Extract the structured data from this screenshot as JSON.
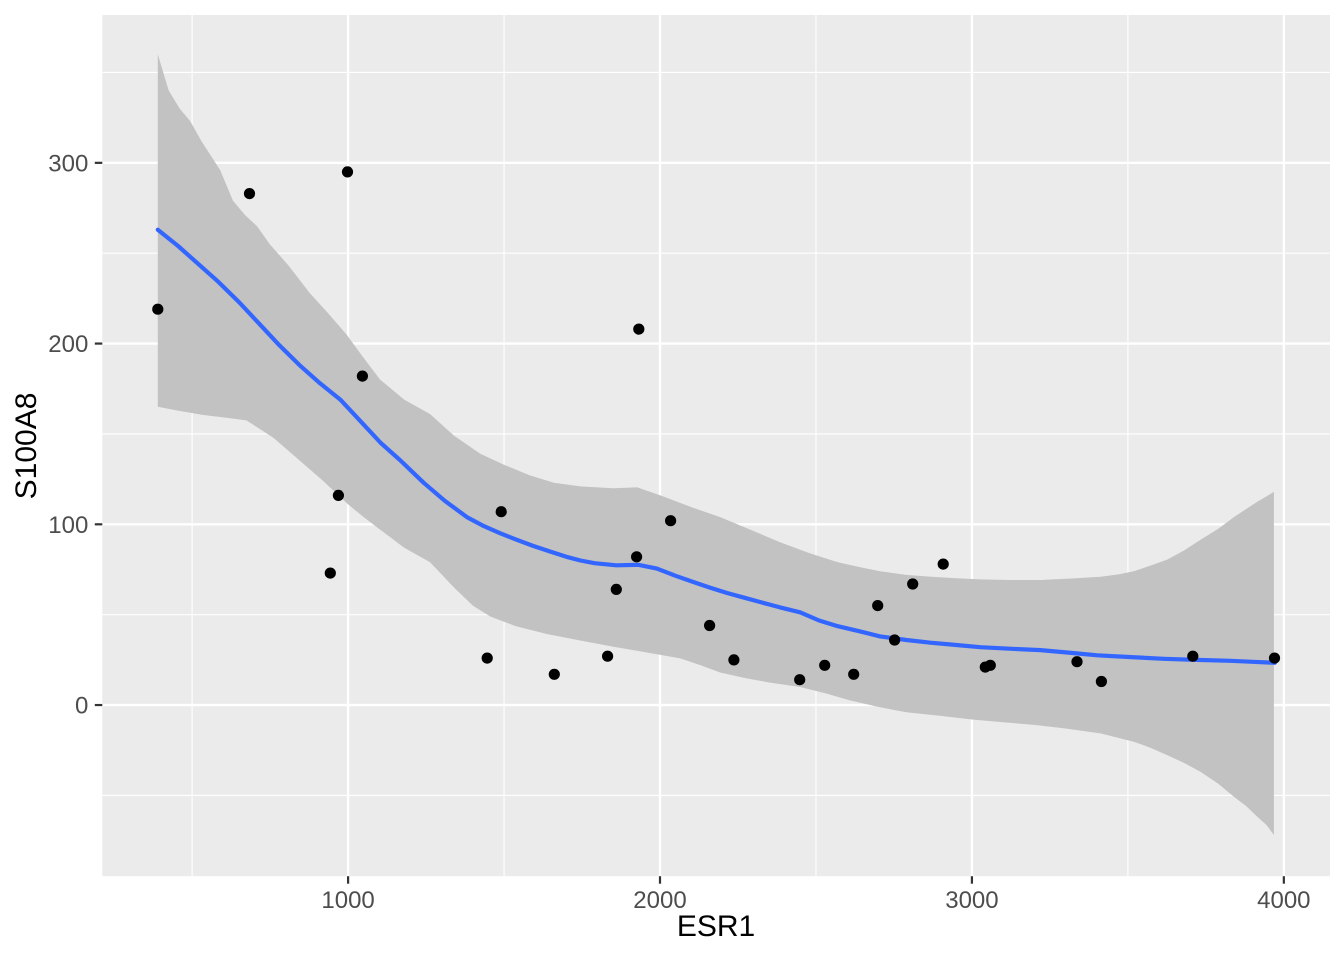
{
  "chart_data": {
    "type": "scatter",
    "title": "",
    "xlabel": "ESR1",
    "ylabel": "S100A8",
    "grid": "on",
    "legend_position": "none",
    "x_axis": {
      "range": [
        212,
        4148
      ],
      "ticks": [
        {
          "value": 1000,
          "label": "1000"
        },
        {
          "value": 2000,
          "label": "2000"
        },
        {
          "value": 3000,
          "label": "3000"
        },
        {
          "value": 4000,
          "label": "4000"
        }
      ],
      "minor_ticks": [
        500,
        1500,
        2500,
        3500
      ]
    },
    "y_axis": {
      "range": [
        -94.7,
        381.8
      ],
      "ticks": [
        {
          "value": 0,
          "label": "0"
        },
        {
          "value": 100,
          "label": "100"
        },
        {
          "value": 200,
          "label": "200"
        },
        {
          "value": 300,
          "label": "300"
        }
      ],
      "minor_ticks": [
        -50,
        50,
        150,
        250,
        350
      ]
    },
    "series": [
      {
        "name": "observations",
        "type": "points",
        "data": [
          [
            390,
            219
          ],
          [
            684,
            283
          ],
          [
            998,
            295
          ],
          [
            1046,
            182
          ],
          [
            969,
            116
          ],
          [
            943,
            73
          ],
          [
            1491,
            107
          ],
          [
            1446,
            26
          ],
          [
            1661,
            17
          ],
          [
            1832,
            27
          ],
          [
            1860,
            64
          ],
          [
            1925,
            82
          ],
          [
            1932,
            208
          ],
          [
            2034,
            102
          ],
          [
            2159,
            44
          ],
          [
            2237,
            25
          ],
          [
            2448,
            14
          ],
          [
            2528,
            22
          ],
          [
            2621,
            17
          ],
          [
            2698,
            55
          ],
          [
            2752,
            36
          ],
          [
            2810,
            67
          ],
          [
            2908,
            78
          ],
          [
            3043,
            21
          ],
          [
            3059,
            22
          ],
          [
            3337,
            24
          ],
          [
            3415,
            13
          ],
          [
            3708,
            27
          ],
          [
            3970,
            26
          ]
        ]
      },
      {
        "name": "loess-fit",
        "type": "line",
        "data": [
          [
            390,
            263
          ],
          [
            455,
            254
          ],
          [
            520,
            244
          ],
          [
            585,
            234
          ],
          [
            650,
            223
          ],
          [
            715,
            211
          ],
          [
            780,
            199
          ],
          [
            845,
            188
          ],
          [
            910,
            178
          ],
          [
            975,
            169
          ],
          [
            1040,
            157
          ],
          [
            1105,
            145
          ],
          [
            1170,
            135
          ],
          [
            1242,
            123
          ],
          [
            1310,
            113
          ],
          [
            1381,
            104
          ],
          [
            1435,
            99
          ],
          [
            1488,
            95
          ],
          [
            1540,
            91.5
          ],
          [
            1594,
            88
          ],
          [
            1650,
            84.8
          ],
          [
            1700,
            82
          ],
          [
            1745,
            80
          ],
          [
            1790,
            78.5
          ],
          [
            1860,
            77.3
          ],
          [
            1930,
            77.6
          ],
          [
            1990,
            75.5
          ],
          [
            2050,
            71.5
          ],
          [
            2108,
            68
          ],
          [
            2160,
            65
          ],
          [
            2215,
            62
          ],
          [
            2270,
            59.4
          ],
          [
            2321,
            57
          ],
          [
            2385,
            54
          ],
          [
            2449,
            51.3
          ],
          [
            2510,
            46.8
          ],
          [
            2570,
            43.6
          ],
          [
            2640,
            40.8
          ],
          [
            2706,
            38
          ],
          [
            2790,
            36
          ],
          [
            2867,
            34.5
          ],
          [
            2950,
            33.2
          ],
          [
            3027,
            32
          ],
          [
            3120,
            31.2
          ],
          [
            3220,
            30.4
          ],
          [
            3310,
            29
          ],
          [
            3402,
            27.5
          ],
          [
            3510,
            26.5
          ],
          [
            3615,
            25.6
          ],
          [
            3720,
            25
          ],
          [
            3829,
            24.5
          ],
          [
            3900,
            23.9
          ],
          [
            3971,
            23.4
          ]
        ]
      },
      {
        "name": "confidence-band",
        "type": "ribbon",
        "upper": [
          [
            390,
            360
          ],
          [
            425,
            340
          ],
          [
            460,
            330
          ],
          [
            494,
            323
          ],
          [
            530,
            312
          ],
          [
            560,
            304
          ],
          [
            590,
            296
          ],
          [
            631,
            279
          ],
          [
            670,
            271
          ],
          [
            708,
            265
          ],
          [
            749,
            255
          ],
          [
            810,
            243
          ],
          [
            877,
            228
          ],
          [
            935,
            217
          ],
          [
            995,
            205
          ],
          [
            1050,
            192
          ],
          [
            1103,
            180
          ],
          [
            1180,
            169
          ],
          [
            1263,
            161
          ],
          [
            1340,
            149
          ],
          [
            1424,
            139
          ],
          [
            1500,
            133
          ],
          [
            1584,
            127
          ],
          [
            1660,
            123
          ],
          [
            1744,
            121
          ],
          [
            1851,
            120
          ],
          [
            1926,
            120.5
          ],
          [
            2001,
            116
          ],
          [
            2108,
            109
          ],
          [
            2193,
            104
          ],
          [
            2290,
            97
          ],
          [
            2386,
            90
          ],
          [
            2480,
            84
          ],
          [
            2570,
            79
          ],
          [
            2650,
            76
          ],
          [
            2706,
            74
          ],
          [
            2790,
            72
          ],
          [
            2870,
            71
          ],
          [
            2950,
            70.2
          ],
          [
            3027,
            69.5
          ],
          [
            3120,
            69.2
          ],
          [
            3220,
            69.2
          ],
          [
            3320,
            70
          ],
          [
            3412,
            71
          ],
          [
            3470,
            72.3
          ],
          [
            3519,
            74
          ],
          [
            3570,
            77
          ],
          [
            3626,
            80.5
          ],
          [
            3680,
            85.5
          ],
          [
            3733,
            91.5
          ],
          [
            3790,
            97.5
          ],
          [
            3840,
            104
          ],
          [
            3880,
            108.5
          ],
          [
            3915,
            112.5
          ],
          [
            3945,
            115.5
          ],
          [
            3968,
            118
          ]
        ],
        "lower": [
          [
            390,
            165
          ],
          [
            450,
            163
          ],
          [
            536,
            160.5
          ],
          [
            610,
            159
          ],
          [
            674,
            157.5
          ],
          [
            760,
            148
          ],
          [
            840,
            136
          ],
          [
            920,
            124
          ],
          [
            1000,
            111
          ],
          [
            1050,
            104
          ],
          [
            1103,
            97
          ],
          [
            1180,
            87
          ],
          [
            1263,
            79
          ],
          [
            1340,
            65
          ],
          [
            1400,
            55
          ],
          [
            1456,
            49
          ],
          [
            1540,
            43.5
          ],
          [
            1637,
            39.3
          ],
          [
            1740,
            35.8
          ],
          [
            1851,
            32.3
          ],
          [
            1960,
            29
          ],
          [
            2065,
            25.8
          ],
          [
            2130,
            22
          ],
          [
            2193,
            18
          ],
          [
            2270,
            15
          ],
          [
            2350,
            12.5
          ],
          [
            2449,
            10
          ],
          [
            2530,
            6.5
          ],
          [
            2610,
            2.5
          ],
          [
            2700,
            -1
          ],
          [
            2790,
            -4
          ],
          [
            2900,
            -6
          ],
          [
            3000,
            -8
          ],
          [
            3100,
            -9.5
          ],
          [
            3200,
            -11
          ],
          [
            3300,
            -13
          ],
          [
            3412,
            -15.7
          ],
          [
            3519,
            -20.3
          ],
          [
            3570,
            -23.5
          ],
          [
            3626,
            -27.7
          ],
          [
            3680,
            -32
          ],
          [
            3733,
            -37
          ],
          [
            3790,
            -43.5
          ],
          [
            3840,
            -50.7
          ],
          [
            3880,
            -56
          ],
          [
            3915,
            -61.8
          ],
          [
            3945,
            -66.5
          ],
          [
            3968,
            -71.9
          ]
        ]
      }
    ],
    "colors": {
      "background": "#FFFFFF",
      "panel": "#EBEBEB",
      "grid": "#FFFFFF",
      "ribbon": "#C2C2C2",
      "line": "#3366FF",
      "point": "#000000",
      "tick_mark": "#333333",
      "tick_label": "#4D4D4D",
      "axis_title": "#000000"
    }
  }
}
